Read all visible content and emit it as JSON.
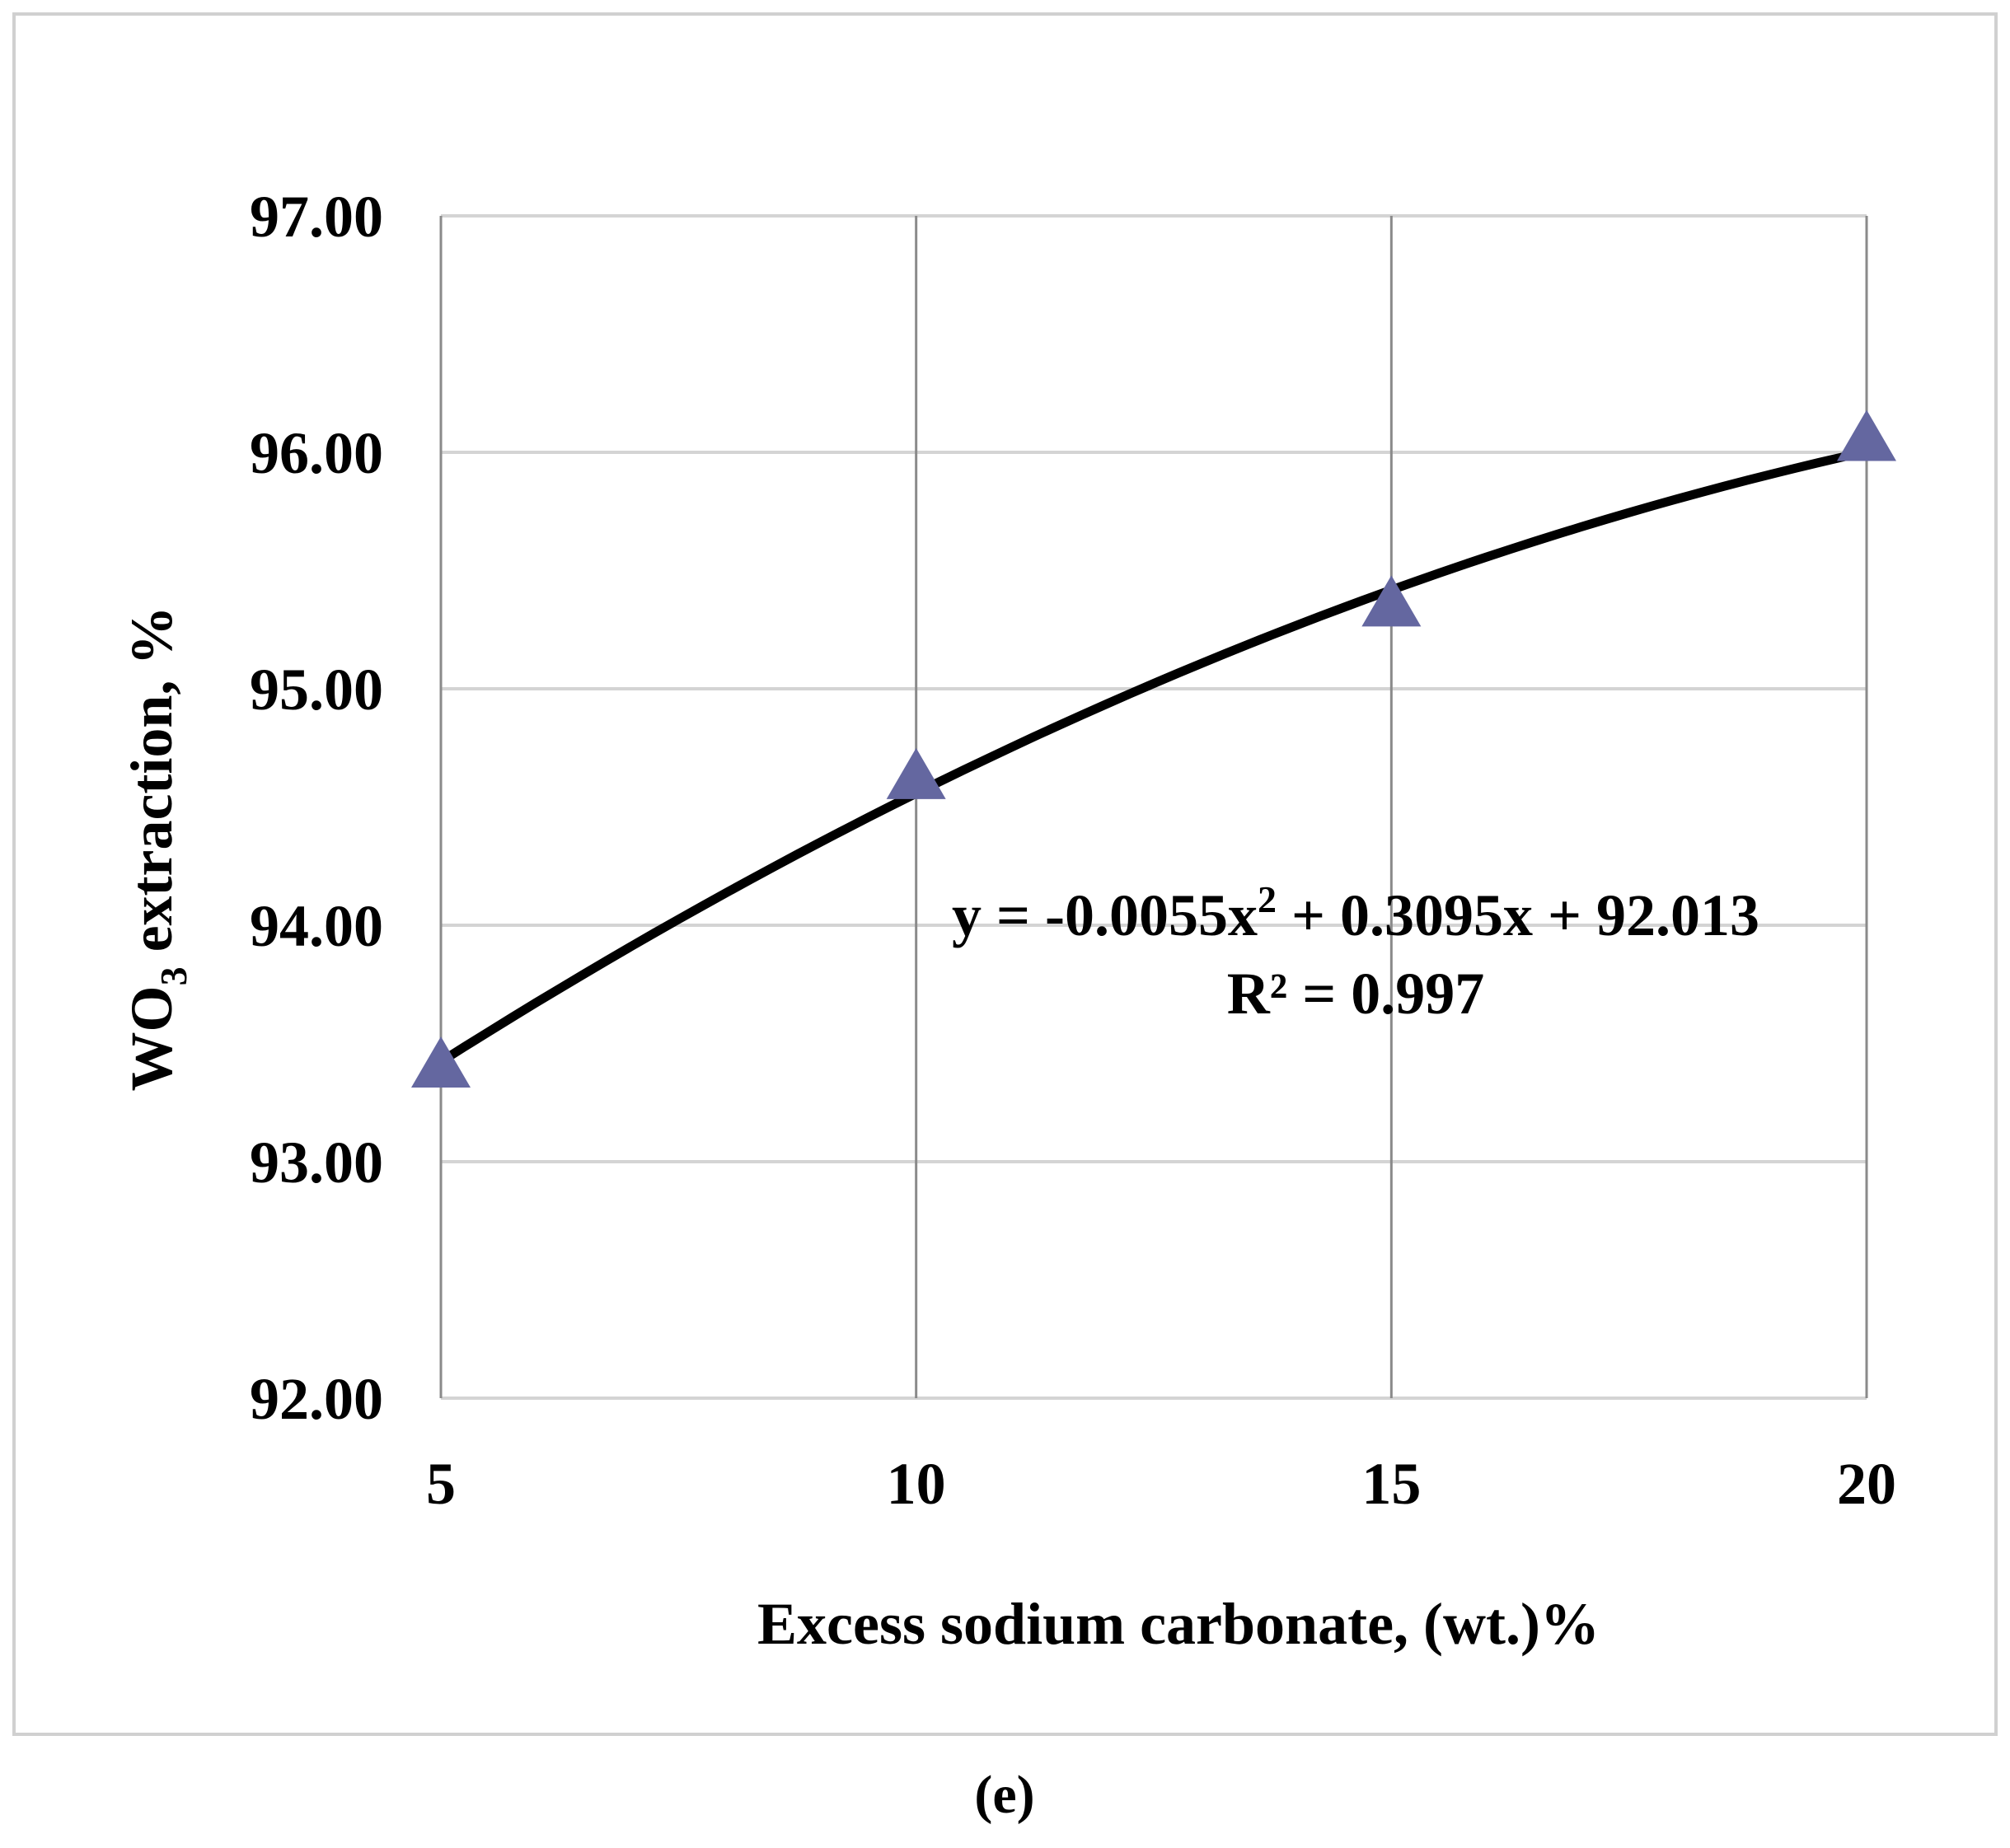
{
  "chart_data": {
    "type": "scatter",
    "x": [
      5,
      10,
      15,
      20
    ],
    "series": [
      {
        "values": [
          93.4,
          94.62,
          95.35,
          96.05
        ],
        "color": "#6467a0",
        "marker": "triangle-up",
        "trendline": {
          "type": "polynomial",
          "order": 2,
          "coefficients": [
            -0.0055,
            0.3095,
            92.013
          ],
          "color": "#000000"
        }
      }
    ],
    "xticks": [
      "5",
      "10",
      "15",
      "20"
    ],
    "yticks": [
      "92.00",
      "93.00",
      "94.00",
      "95.00",
      "96.00",
      "97.00"
    ],
    "xlim": [
      5,
      20
    ],
    "ylim": [
      92,
      97
    ],
    "xlabel": "Excess sodium carbonate, (wt.)%",
    "ylabel": {
      "main": "WO",
      "sub": "3",
      "rest": " extraction, %"
    },
    "equation": {
      "prefix": "y = -0.0055x",
      "sup": "2",
      "suffix": " + 0.3095x + 92.013"
    },
    "r_squared": "R² = 0.997",
    "grid": {
      "horizontal": true,
      "vertical": true
    },
    "legend": "none"
  },
  "caption": "(e)"
}
